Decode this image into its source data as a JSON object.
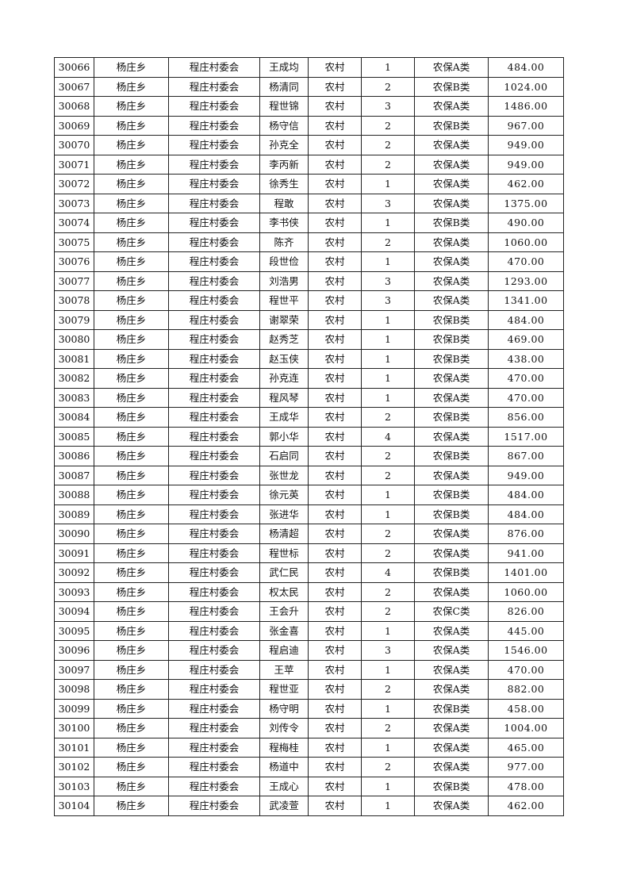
{
  "table": {
    "rows": [
      [
        "30066",
        "杨庄乡",
        "程庄村委会",
        "王成均",
        "农村",
        "1",
        "农保A类",
        "484.00"
      ],
      [
        "30067",
        "杨庄乡",
        "程庄村委会",
        "杨清同",
        "农村",
        "2",
        "农保B类",
        "1024.00"
      ],
      [
        "30068",
        "杨庄乡",
        "程庄村委会",
        "程世锦",
        "农村",
        "3",
        "农保A类",
        "1486.00"
      ],
      [
        "30069",
        "杨庄乡",
        "程庄村委会",
        "杨守信",
        "农村",
        "2",
        "农保B类",
        "967.00"
      ],
      [
        "30070",
        "杨庄乡",
        "程庄村委会",
        "孙克全",
        "农村",
        "2",
        "农保A类",
        "949.00"
      ],
      [
        "30071",
        "杨庄乡",
        "程庄村委会",
        "李丙新",
        "农村",
        "2",
        "农保A类",
        "949.00"
      ],
      [
        "30072",
        "杨庄乡",
        "程庄村委会",
        "徐秀生",
        "农村",
        "1",
        "农保A类",
        "462.00"
      ],
      [
        "30073",
        "杨庄乡",
        "程庄村委会",
        "程敢",
        "农村",
        "3",
        "农保A类",
        "1375.00"
      ],
      [
        "30074",
        "杨庄乡",
        "程庄村委会",
        "李书侠",
        "农村",
        "1",
        "农保B类",
        "490.00"
      ],
      [
        "30075",
        "杨庄乡",
        "程庄村委会",
        "陈齐",
        "农村",
        "2",
        "农保A类",
        "1060.00"
      ],
      [
        "30076",
        "杨庄乡",
        "程庄村委会",
        "段世俭",
        "农村",
        "1",
        "农保A类",
        "470.00"
      ],
      [
        "30077",
        "杨庄乡",
        "程庄村委会",
        "刘浩男",
        "农村",
        "3",
        "农保A类",
        "1293.00"
      ],
      [
        "30078",
        "杨庄乡",
        "程庄村委会",
        "程世平",
        "农村",
        "3",
        "农保A类",
        "1341.00"
      ],
      [
        "30079",
        "杨庄乡",
        "程庄村委会",
        "谢翠荣",
        "农村",
        "1",
        "农保B类",
        "484.00"
      ],
      [
        "30080",
        "杨庄乡",
        "程庄村委会",
        "赵秀芝",
        "农村",
        "1",
        "农保B类",
        "469.00"
      ],
      [
        "30081",
        "杨庄乡",
        "程庄村委会",
        "赵玉侠",
        "农村",
        "1",
        "农保B类",
        "438.00"
      ],
      [
        "30082",
        "杨庄乡",
        "程庄村委会",
        "孙克连",
        "农村",
        "1",
        "农保A类",
        "470.00"
      ],
      [
        "30083",
        "杨庄乡",
        "程庄村委会",
        "程风琴",
        "农村",
        "1",
        "农保A类",
        "470.00"
      ],
      [
        "30084",
        "杨庄乡",
        "程庄村委会",
        "王成华",
        "农村",
        "2",
        "农保B类",
        "856.00"
      ],
      [
        "30085",
        "杨庄乡",
        "程庄村委会",
        "郭小华",
        "农村",
        "4",
        "农保A类",
        "1517.00"
      ],
      [
        "30086",
        "杨庄乡",
        "程庄村委会",
        "石启同",
        "农村",
        "2",
        "农保B类",
        "867.00"
      ],
      [
        "30087",
        "杨庄乡",
        "程庄村委会",
        "张世龙",
        "农村",
        "2",
        "农保A类",
        "949.00"
      ],
      [
        "30088",
        "杨庄乡",
        "程庄村委会",
        "徐元英",
        "农村",
        "1",
        "农保B类",
        "484.00"
      ],
      [
        "30089",
        "杨庄乡",
        "程庄村委会",
        "张进华",
        "农村",
        "1",
        "农保B类",
        "484.00"
      ],
      [
        "30090",
        "杨庄乡",
        "程庄村委会",
        "杨清超",
        "农村",
        "2",
        "农保A类",
        "876.00"
      ],
      [
        "30091",
        "杨庄乡",
        "程庄村委会",
        "程世标",
        "农村",
        "2",
        "农保A类",
        "941.00"
      ],
      [
        "30092",
        "杨庄乡",
        "程庄村委会",
        "武仁民",
        "农村",
        "4",
        "农保B类",
        "1401.00"
      ],
      [
        "30093",
        "杨庄乡",
        "程庄村委会",
        "权太民",
        "农村",
        "2",
        "农保A类",
        "1060.00"
      ],
      [
        "30094",
        "杨庄乡",
        "程庄村委会",
        "王会升",
        "农村",
        "2",
        "农保C类",
        "826.00"
      ],
      [
        "30095",
        "杨庄乡",
        "程庄村委会",
        "张金喜",
        "农村",
        "1",
        "农保A类",
        "445.00"
      ],
      [
        "30096",
        "杨庄乡",
        "程庄村委会",
        "程启迪",
        "农村",
        "3",
        "农保A类",
        "1546.00"
      ],
      [
        "30097",
        "杨庄乡",
        "程庄村委会",
        "王苹",
        "农村",
        "1",
        "农保A类",
        "470.00"
      ],
      [
        "30098",
        "杨庄乡",
        "程庄村委会",
        "程世亚",
        "农村",
        "2",
        "农保A类",
        "882.00"
      ],
      [
        "30099",
        "杨庄乡",
        "程庄村委会",
        "杨守明",
        "农村",
        "1",
        "农保B类",
        "458.00"
      ],
      [
        "30100",
        "杨庄乡",
        "程庄村委会",
        "刘传令",
        "农村",
        "2",
        "农保A类",
        "1004.00"
      ],
      [
        "30101",
        "杨庄乡",
        "程庄村委会",
        "程梅桂",
        "农村",
        "1",
        "农保A类",
        "465.00"
      ],
      [
        "30102",
        "杨庄乡",
        "程庄村委会",
        "杨道中",
        "农村",
        "2",
        "农保A类",
        "977.00"
      ],
      [
        "30103",
        "杨庄乡",
        "程庄村委会",
        "王成心",
        "农村",
        "1",
        "农保B类",
        "478.00"
      ],
      [
        "30104",
        "杨庄乡",
        "程庄村委会",
        "武凌萱",
        "农村",
        "1",
        "农保A类",
        "462.00"
      ]
    ]
  }
}
